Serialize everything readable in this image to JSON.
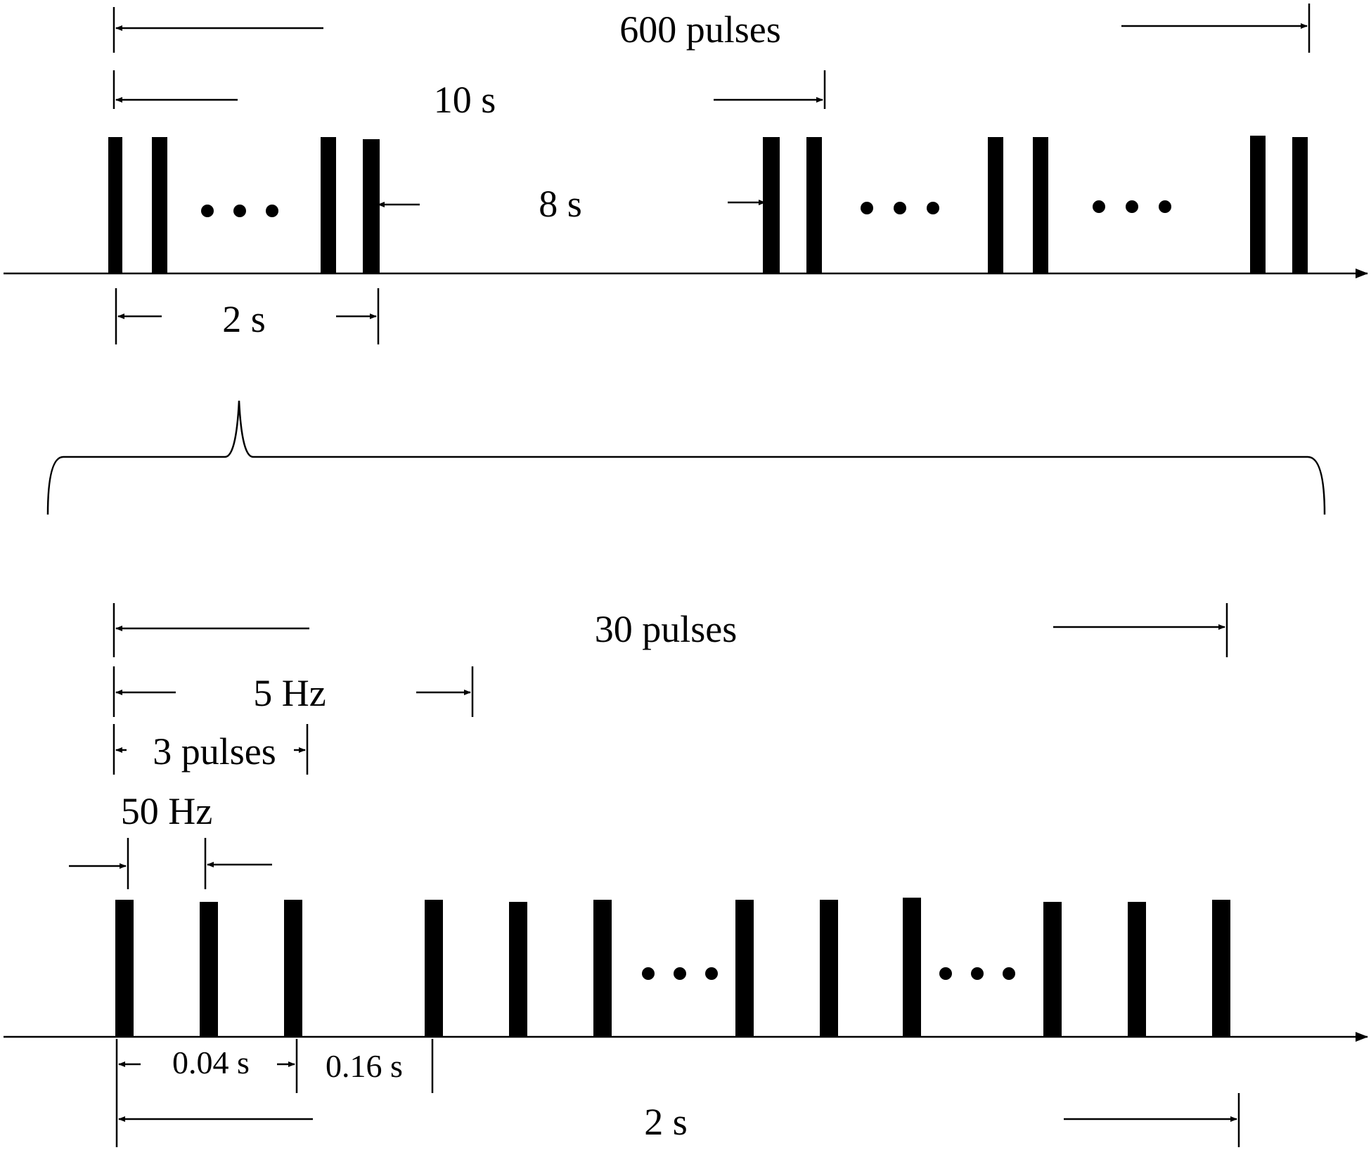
{
  "labels": {
    "top_total": "600 pulses",
    "top_period": "10 s",
    "top_gap": "8 s",
    "top_train": "2 s",
    "bottom_total": "30 pulses",
    "bottom_burst_rate": "5 Hz",
    "bottom_burst_count": "3 pulses",
    "bottom_pulse_rate": "50 Hz",
    "bottom_burst_duration": "0.04 s",
    "bottom_interburst": "0.16 s",
    "bottom_train_duration": "2 s"
  },
  "colors": {
    "ink": "#000000",
    "background": "#ffffff"
  }
}
